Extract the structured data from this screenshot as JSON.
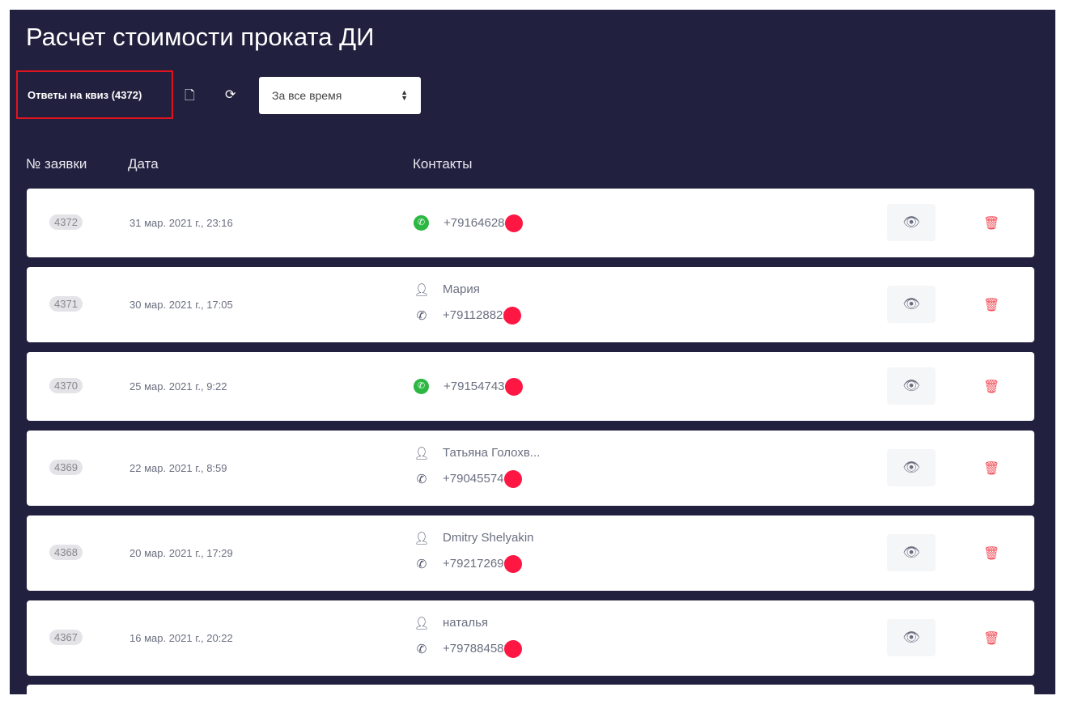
{
  "title": "Расчет стоимости проката ДИ",
  "toolbar": {
    "quiz_label": "Ответы на квиз (4372)",
    "period": "За все время"
  },
  "columns": {
    "number": "№ заявки",
    "date": "Дата",
    "contacts": "Контакты"
  },
  "rows": [
    {
      "id": "4372",
      "date": "31 мар. 2021 г., 23:16",
      "name": null,
      "phone": "+791646284",
      "channel": "whatsapp"
    },
    {
      "id": "4371",
      "date": "30 мар. 2021 г., 17:05",
      "name": "Мария",
      "phone": "+791128822",
      "channel": "phone"
    },
    {
      "id": "4370",
      "date": "25 мар. 2021 г., 9:22",
      "name": null,
      "phone": "+791547436",
      "channel": "whatsapp"
    },
    {
      "id": "4369",
      "date": "22 мар. 2021 г., 8:59",
      "name": "Татьяна Голохв...",
      "phone": "+790455746",
      "channel": "phone"
    },
    {
      "id": "4368",
      "date": "20 мар. 2021 г., 17:29",
      "name": "Dmitry Shelyakin",
      "phone": "+792172690",
      "channel": "phone"
    },
    {
      "id": "4367",
      "date": "16 мар. 2021 г., 20:22",
      "name": "наталья",
      "phone": "+797884583",
      "channel": "phone"
    }
  ],
  "colors": {
    "panel": "#21203e",
    "delete": "#f44a55",
    "highlight": "#e0141c",
    "redaction": "#ff1744"
  }
}
